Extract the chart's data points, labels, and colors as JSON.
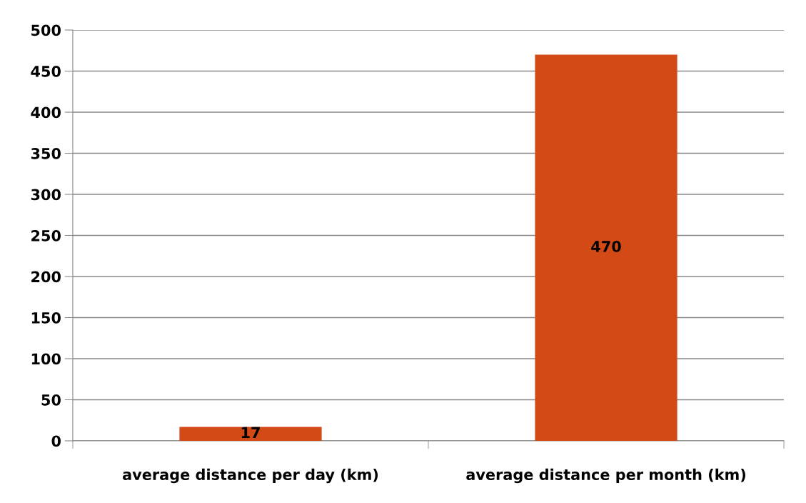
{
  "chart_data": {
    "type": "bar",
    "categories": [
      "average distance per day (km)",
      "average distance per month (km)"
    ],
    "values": [
      17,
      470
    ],
    "color": "#d34a17",
    "ylim": [
      0,
      500
    ],
    "yticks": [
      0,
      50,
      100,
      150,
      200,
      250,
      300,
      350,
      400,
      450,
      500
    ],
    "grid": "y",
    "data_labels": true,
    "legend": false
  }
}
